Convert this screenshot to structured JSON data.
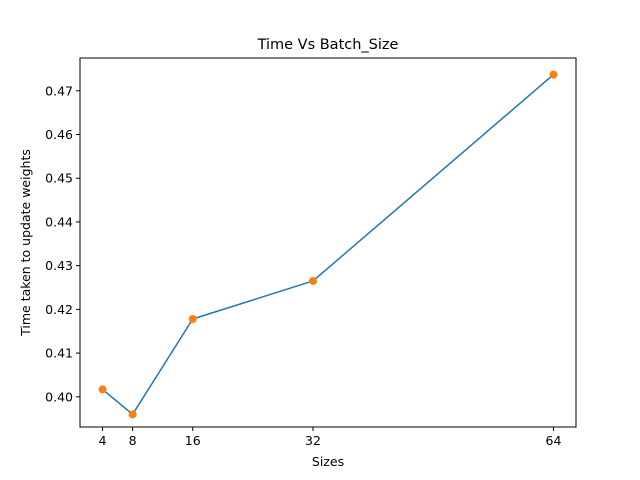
{
  "chart_data": {
    "type": "line",
    "title": "Time Vs Batch_Size",
    "xlabel": "Sizes",
    "ylabel": "Time taken to update weights",
    "x": [
      4,
      8,
      16,
      32,
      64
    ],
    "xticks": [
      4,
      8,
      16,
      32,
      64
    ],
    "yticks": [
      0.4,
      0.41,
      0.42,
      0.43,
      0.44,
      0.45,
      0.46,
      0.47
    ],
    "xlim": [
      1,
      67
    ],
    "ylim": [
      0.3931,
      0.4775
    ],
    "series": [
      {
        "values": [
          0.4017,
          0.396,
          0.4178,
          0.4265,
          0.4737
        ],
        "color": "#1f77b4",
        "marker_color": "#ff7f0e"
      }
    ],
    "grid": false,
    "legend": "none"
  }
}
